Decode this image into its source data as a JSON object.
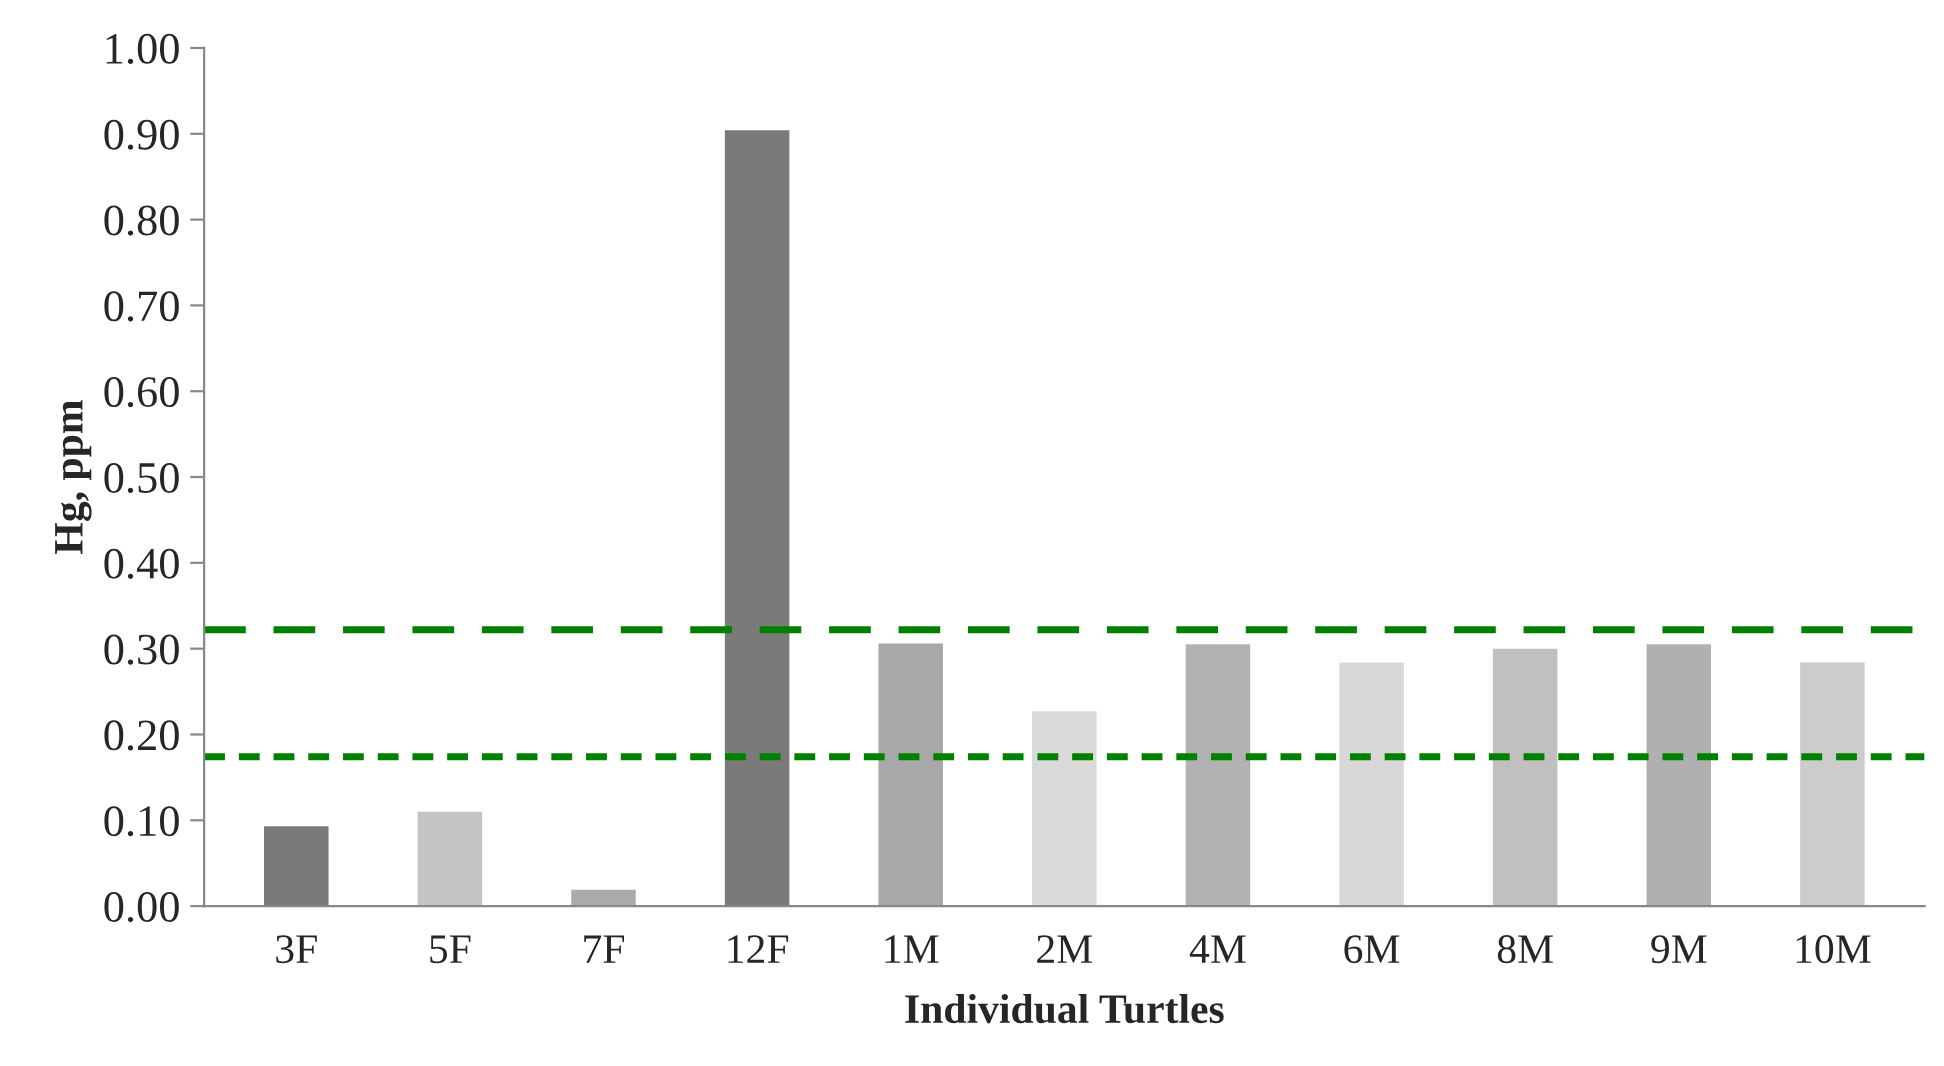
{
  "chart_data": {
    "type": "bar",
    "xlabel": "Individual Turtles",
    "ylabel": "Hg, ppm",
    "categories": [
      "3F",
      "5F",
      "7F",
      "12F",
      "1M",
      "2M",
      "4M",
      "6M",
      "8M",
      "9M",
      "10M"
    ],
    "values": [
      0.093,
      0.11,
      0.019,
      0.904,
      0.306,
      0.227,
      0.305,
      0.284,
      0.3,
      0.305,
      0.284
    ],
    "colors": [
      "#7a7a7a",
      "#c4c4c4",
      "#aaaaaa",
      "#7a7a7a",
      "#a8a8a8",
      "#dadada",
      "#b2b2b2",
      "#d8d8d8",
      "#c0c0c0",
      "#b0b0b0",
      "#cccccc"
    ],
    "ylim": [
      0,
      1
    ],
    "yticks": [
      {
        "value": 0,
        "label": "0.00"
      },
      {
        "value": 0.1,
        "label": "0.10"
      },
      {
        "value": 0.2,
        "label": "0.20"
      },
      {
        "value": 0.3,
        "label": "0.30"
      },
      {
        "value": 0.4,
        "label": "0.40"
      },
      {
        "value": 0.5,
        "label": "0.50"
      },
      {
        "value": 0.6,
        "label": "0.60"
      },
      {
        "value": 0.7,
        "label": "0.70"
      },
      {
        "value": 0.8,
        "label": "0.80"
      },
      {
        "value": 0.9,
        "label": "0.90"
      },
      {
        "value": 1,
        "label": "1.00"
      }
    ],
    "ref_lines": [
      {
        "axis": "y",
        "value": 0.322,
        "color": "#008000",
        "line_style": "dashed"
      },
      {
        "axis": "y",
        "value": 0.174,
        "color": "#008000",
        "line_style": "dotted"
      }
    ]
  }
}
